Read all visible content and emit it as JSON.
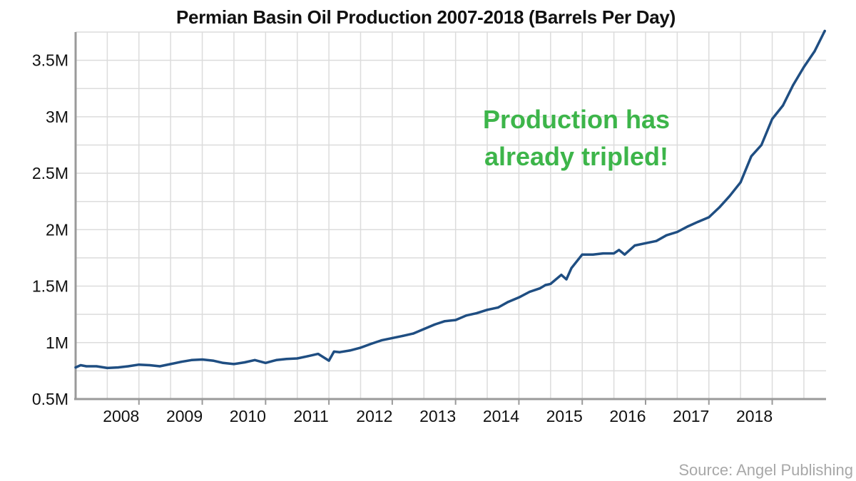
{
  "chart_data": {
    "type": "line",
    "title": "Permian Basin Oil Production 2007-2018 (Barrels Per Day)",
    "xlabel": "",
    "ylabel": "",
    "x_range": [
      2007.0,
      2018.85
    ],
    "ylim": [
      500000,
      3750000
    ],
    "y_ticks": [
      500000,
      1000000,
      1500000,
      2000000,
      2500000,
      3000000,
      3500000
    ],
    "y_tick_labels": [
      "0.5M",
      "1M",
      "1.5M",
      "2M",
      "2.5M",
      "3M",
      "3.5M"
    ],
    "x_ticks": [
      2008,
      2009,
      2010,
      2011,
      2012,
      2013,
      2014,
      2015,
      2016,
      2017,
      2018
    ],
    "x_tick_labels": [
      "2008",
      "2009",
      "2010",
      "2011",
      "2012",
      "2013",
      "2014",
      "2015",
      "2016",
      "2017",
      "2018"
    ],
    "grid": true,
    "line_color": "#1f4e82",
    "annotation": {
      "lines": [
        "Production has",
        "already tripled!"
      ],
      "color": "#3db54a"
    },
    "series": [
      {
        "x": [
          2007.0,
          2007.08,
          2007.17,
          2007.33,
          2007.5,
          2007.67,
          2007.83,
          2008.0,
          2008.17,
          2008.33,
          2008.5,
          2008.67,
          2008.83,
          2009.0,
          2009.17,
          2009.33,
          2009.5,
          2009.67,
          2009.83,
          2010.0,
          2010.17,
          2010.33,
          2010.5,
          2010.67,
          2010.83,
          2011.0,
          2011.08,
          2011.17,
          2011.33,
          2011.5,
          2011.67,
          2011.83,
          2012.0,
          2012.17,
          2012.33,
          2012.5,
          2012.67,
          2012.83,
          2013.0,
          2013.17,
          2013.33,
          2013.5,
          2013.67,
          2013.83,
          2014.0,
          2014.17,
          2014.33,
          2014.42,
          2014.5,
          2014.67,
          2014.75,
          2014.83,
          2015.0,
          2015.17,
          2015.33,
          2015.5,
          2015.58,
          2015.67,
          2015.83,
          2016.0,
          2016.17,
          2016.33,
          2016.5,
          2016.67,
          2016.83,
          2017.0,
          2017.17,
          2017.33,
          2017.5,
          2017.67,
          2017.83,
          2018.0,
          2018.17,
          2018.33,
          2018.5,
          2018.67,
          2018.83
        ],
        "values": [
          780000,
          800000,
          790000,
          790000,
          775000,
          780000,
          790000,
          805000,
          800000,
          790000,
          810000,
          830000,
          845000,
          850000,
          840000,
          820000,
          810000,
          825000,
          845000,
          820000,
          845000,
          855000,
          860000,
          880000,
          900000,
          840000,
          920000,
          915000,
          930000,
          955000,
          990000,
          1020000,
          1040000,
          1060000,
          1080000,
          1120000,
          1160000,
          1190000,
          1200000,
          1240000,
          1260000,
          1290000,
          1310000,
          1360000,
          1400000,
          1450000,
          1480000,
          1510000,
          1520000,
          1600000,
          1560000,
          1660000,
          1780000,
          1780000,
          1790000,
          1790000,
          1820000,
          1780000,
          1860000,
          1880000,
          1900000,
          1950000,
          1980000,
          2030000,
          2070000,
          2110000,
          2200000,
          2300000,
          2420000,
          2650000,
          2750000,
          2980000,
          3100000,
          3280000,
          3440000,
          3580000,
          3760000
        ]
      }
    ]
  },
  "source": "Source: Angel Publishing"
}
